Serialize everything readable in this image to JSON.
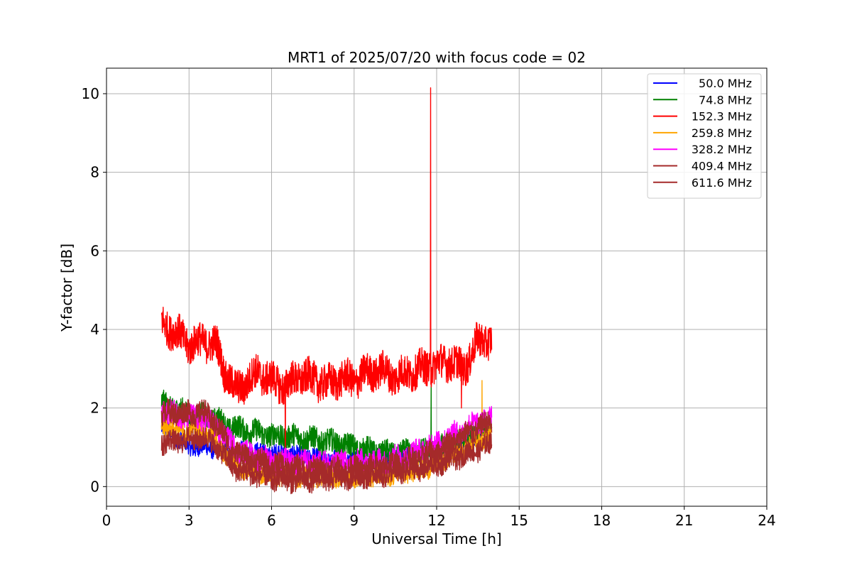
{
  "chart_data": {
    "type": "line",
    "title": "MRT1 of 2025/07/20 with focus code = 02",
    "xlabel": "Universal Time [h]",
    "ylabel": "Y-factor [dB]",
    "xlim": [
      0,
      24
    ],
    "ylim": [
      -0.5,
      10.65
    ],
    "xticks": [
      0,
      3,
      6,
      9,
      12,
      15,
      18,
      21,
      24
    ],
    "yticks": [
      0,
      2,
      4,
      6,
      8,
      10
    ],
    "grid": true,
    "legend_position": "top-right",
    "series": [
      {
        "name": "50.0 MHz",
        "color": "#0000ff",
        "x": [
          2.0,
          2.5,
          3.0,
          3.5,
          4.0,
          4.5,
          5.0,
          6.0,
          7.0,
          8.0,
          9.0,
          10.0,
          11.0,
          12.0,
          13.0,
          14.0
        ],
        "y": [
          1.5,
          1.3,
          1.0,
          1.0,
          0.95,
          0.85,
          0.9,
          0.85,
          0.8,
          0.7,
          0.65,
          0.7,
          0.8,
          0.95,
          1.15,
          1.5
        ],
        "band": 0.22,
        "spikes": []
      },
      {
        "name": "74.8 MHz",
        "color": "#008000",
        "x": [
          2.0,
          2.5,
          3.0,
          3.5,
          4.0,
          4.5,
          5.0,
          6.0,
          7.0,
          8.0,
          9.0,
          10.0,
          11.0,
          12.0,
          13.0,
          14.0
        ],
        "y": [
          2.1,
          2.0,
          1.8,
          1.8,
          1.7,
          1.5,
          1.45,
          1.3,
          1.25,
          1.15,
          1.0,
          0.85,
          0.85,
          0.95,
          1.2,
          1.55
        ],
        "band": 0.3,
        "spikes": [
          [
            11.8,
            2.7
          ]
        ]
      },
      {
        "name": "152.3 MHz",
        "color": "#ff0000",
        "x": [
          2.0,
          2.5,
          3.0,
          3.5,
          4.0,
          4.3,
          4.7,
          5.0,
          5.5,
          6.0,
          6.5,
          7.0,
          7.5,
          8.0,
          8.5,
          9.0,
          9.5,
          10.0,
          10.5,
          11.0,
          11.5,
          12.0,
          12.5,
          13.0,
          13.5,
          14.0
        ],
        "y": [
          4.15,
          3.95,
          3.6,
          3.7,
          3.6,
          2.9,
          2.45,
          2.6,
          2.9,
          2.7,
          2.55,
          2.8,
          2.75,
          2.6,
          2.75,
          2.7,
          2.9,
          2.95,
          2.8,
          2.9,
          3.0,
          3.1,
          3.2,
          3.0,
          3.7,
          3.75
        ],
        "band": 0.45,
        "spikes": [
          [
            11.78,
            10.15
          ],
          [
            6.5,
            0.6
          ],
          [
            12.9,
            2.0
          ]
        ]
      },
      {
        "name": "259.8 MHz",
        "color": "#ffa500",
        "x": [
          2.0,
          2.5,
          3.0,
          3.5,
          4.0,
          4.5,
          5.0,
          6.0,
          7.0,
          8.0,
          9.0,
          10.0,
          11.0,
          12.0,
          13.0,
          14.0
        ],
        "y": [
          1.6,
          1.5,
          1.45,
          1.45,
          1.15,
          0.65,
          0.45,
          0.3,
          0.25,
          0.25,
          0.25,
          0.3,
          0.35,
          0.55,
          0.95,
          1.35
        ],
        "band": 0.25,
        "spikes": [
          [
            13.65,
            2.7
          ]
        ]
      },
      {
        "name": "328.2 MHz",
        "color": "#ff00ff",
        "x": [
          2.0,
          2.5,
          3.0,
          3.5,
          4.0,
          4.5,
          5.0,
          6.0,
          7.0,
          8.0,
          9.0,
          10.0,
          11.0,
          12.0,
          13.0,
          14.0
        ],
        "y": [
          1.95,
          1.85,
          1.75,
          1.75,
          1.5,
          1.1,
          0.85,
          0.65,
          0.6,
          0.6,
          0.6,
          0.65,
          0.8,
          1.1,
          1.45,
          1.8
        ],
        "band": 0.3,
        "spikes": []
      },
      {
        "name": "409.4 MHz",
        "color": "#a52a2a",
        "x": [
          2.0,
          2.5,
          3.0,
          3.5,
          4.0,
          4.5,
          5.0,
          6.0,
          7.0,
          8.0,
          9.0,
          10.0,
          11.0,
          12.0,
          13.0,
          14.0
        ],
        "y": [
          1.1,
          1.15,
          1.2,
          1.25,
          1.05,
          0.55,
          0.35,
          0.2,
          0.15,
          0.2,
          0.25,
          0.3,
          0.4,
          0.55,
          0.8,
          1.1
        ],
        "band": 0.28,
        "spikes": []
      },
      {
        "name": "611.6 MHz",
        "color": "#a52a2a",
        "x": [
          2.0,
          2.5,
          3.0,
          3.5,
          4.0,
          4.5,
          5.0,
          6.0,
          7.0,
          8.0,
          9.0,
          10.0,
          11.0,
          12.0,
          13.0,
          14.0
        ],
        "y": [
          1.85,
          1.9,
          1.85,
          1.9,
          1.6,
          1.0,
          0.75,
          0.55,
          0.45,
          0.45,
          0.45,
          0.5,
          0.65,
          0.9,
          1.3,
          1.65
        ],
        "band": 0.3,
        "spikes": []
      }
    ]
  }
}
